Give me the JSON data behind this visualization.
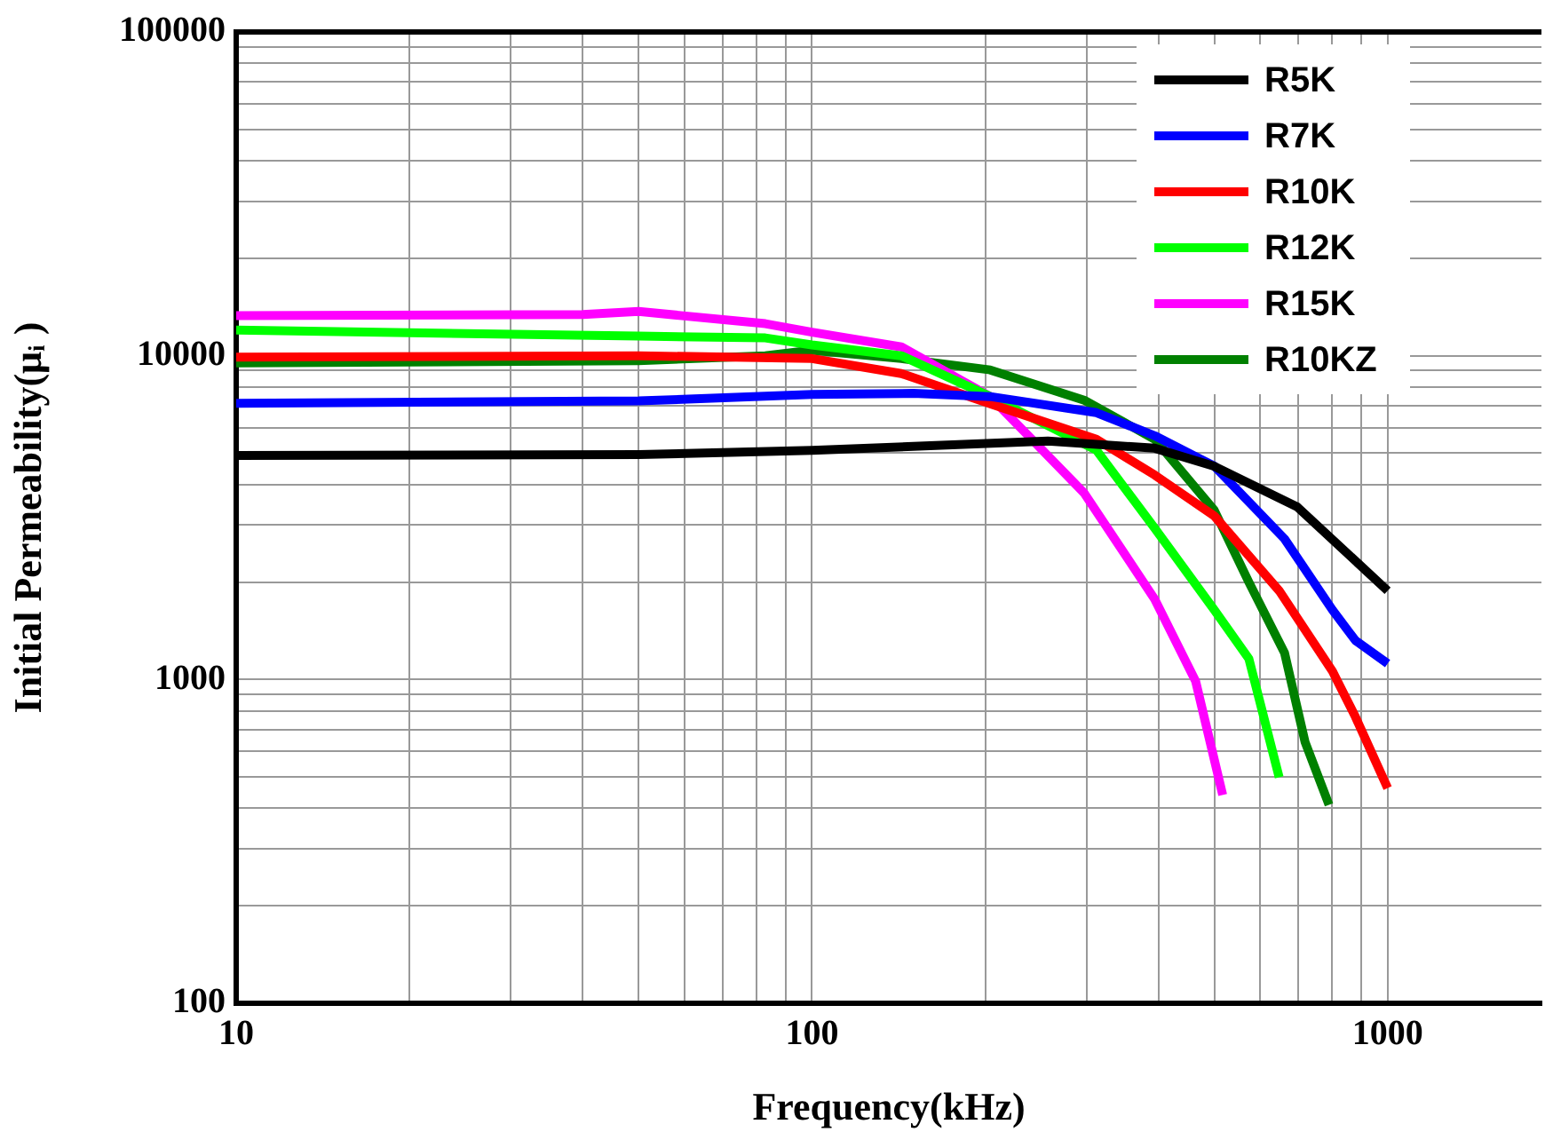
{
  "chart_data": {
    "type": "line",
    "xlabel": "Frequency(kHz)",
    "ylabel": "Initial Permeability(μᵢ )",
    "log": "xy",
    "grid": true,
    "legend": "top right",
    "marker": "none",
    "line_style": "solid",
    "xlim": [
      10,
      1850
    ],
    "ylim": [
      100,
      100000
    ],
    "xticks": [
      10,
      {
        "value": 20,
        "label": null
      },
      {
        "value": 30,
        "label": null
      },
      {
        "value": 40,
        "label": null
      },
      {
        "value": 50,
        "label": null
      },
      {
        "value": 60,
        "label": null
      },
      {
        "value": 70,
        "label": null
      },
      {
        "value": 80,
        "label": null
      },
      {
        "value": 90,
        "label": null
      },
      100,
      {
        "value": 200,
        "label": null
      },
      {
        "value": 300,
        "label": null
      },
      {
        "value": 400,
        "label": null
      },
      {
        "value": 500,
        "label": null
      },
      {
        "value": 600,
        "label": null
      },
      {
        "value": 700,
        "label": null
      },
      {
        "value": 800,
        "label": null
      },
      {
        "value": 900,
        "label": null
      },
      1000
    ],
    "yticks": [
      100,
      {
        "value": 200,
        "label": null
      },
      {
        "value": 300,
        "label": null
      },
      {
        "value": 400,
        "label": null
      },
      {
        "value": 500,
        "label": null
      },
      {
        "value": 600,
        "label": null
      },
      {
        "value": 700,
        "label": null
      },
      {
        "value": 800,
        "label": null
      },
      {
        "value": 900,
        "label": null
      },
      1000,
      {
        "value": 2000,
        "label": null
      },
      {
        "value": 3000,
        "label": null
      },
      {
        "value": 4000,
        "label": null
      },
      {
        "value": 5000,
        "label": null
      },
      {
        "value": 6000,
        "label": null
      },
      {
        "value": 7000,
        "label": null
      },
      {
        "value": 8000,
        "label": null
      },
      {
        "value": 9000,
        "label": null
      },
      10000,
      {
        "value": 20000,
        "label": null
      },
      {
        "value": 30000,
        "label": null
      },
      {
        "value": 40000,
        "label": null
      },
      {
        "value": 50000,
        "label": null
      },
      {
        "value": 60000,
        "label": null
      },
      {
        "value": 70000,
        "label": null
      },
      {
        "value": 80000,
        "label": null
      },
      {
        "value": 90000,
        "label": null
      },
      100000
    ],
    "series": [
      {
        "name": "R5K",
        "color": "#000000",
        "x": [
          10,
          50,
          100,
          150,
          257,
          394,
          499,
          697,
          1000
        ],
        "values": [
          4920,
          4950,
          5100,
          5250,
          5450,
          5180,
          4560,
          3410,
          1880
        ]
      },
      {
        "name": "R7K",
        "color": "#0000ff",
        "x": [
          10,
          50,
          100,
          150,
          204,
          312,
          394,
          500,
          662,
          802,
          879,
          1000
        ],
        "values": [
          7130,
          7250,
          7600,
          7650,
          7480,
          6670,
          5660,
          4560,
          2720,
          1640,
          1320,
          1120
        ]
      },
      {
        "name": "R10K",
        "color": "#ff0000",
        "x": [
          10,
          50,
          100,
          143,
          204,
          312,
          394,
          500,
          648,
          802,
          879,
          1000
        ],
        "values": [
          9900,
          10000,
          9800,
          8810,
          7110,
          5520,
          4280,
          3200,
          1880,
          1060,
          767,
          462
        ]
      },
      {
        "name": "R12K",
        "color": "#00ff00",
        "x": [
          10,
          50,
          83,
          100,
          143,
          204,
          312,
          394,
          500,
          574,
          648
        ],
        "values": [
          12000,
          11500,
          11350,
          10800,
          10000,
          7480,
          5110,
          2930,
          1640,
          1160,
          499
        ]
      },
      {
        "name": "R15K",
        "color": "#ff00ff",
        "x": [
          10,
          40,
          50,
          83,
          100,
          143,
          204,
          297,
          394,
          464,
          517
        ],
        "values": [
          13300,
          13400,
          13700,
          12560,
          11830,
          10650,
          7480,
          3770,
          1770,
          988,
          440
        ]
      },
      {
        "name": "R10KZ",
        "color": "#008000",
        "x": [
          10,
          50,
          83,
          100,
          143,
          204,
          297,
          394,
          500,
          574,
          662,
          719,
          791
        ],
        "values": [
          9500,
          9650,
          10000,
          10400,
          9800,
          9040,
          7290,
          5520,
          3330,
          2000,
          1210,
          640,
          410
        ]
      }
    ]
  }
}
